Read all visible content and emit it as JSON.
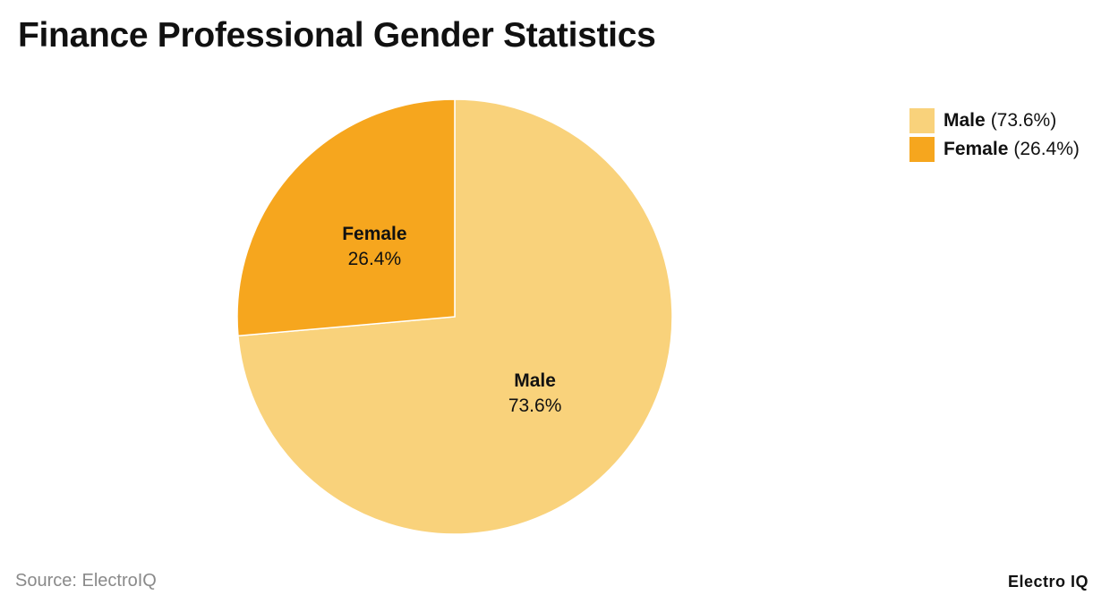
{
  "chart_data": {
    "type": "pie",
    "title": "Finance Professional Gender Statistics",
    "slices": [
      {
        "label": "Male",
        "value": 73.6,
        "value_label": "73.6%",
        "legend_value": "(73.6%)",
        "color": "#F9D27B"
      },
      {
        "label": "Female",
        "value": 26.4,
        "value_label": "26.4%",
        "legend_value": "(26.4%)",
        "color": "#F6A61E"
      }
    ],
    "legend_position": "top-right",
    "start_angle": "12 o'clock, clockwise"
  },
  "footer": {
    "source": "Source: ElectroIQ",
    "brand": "Electro IQ"
  }
}
